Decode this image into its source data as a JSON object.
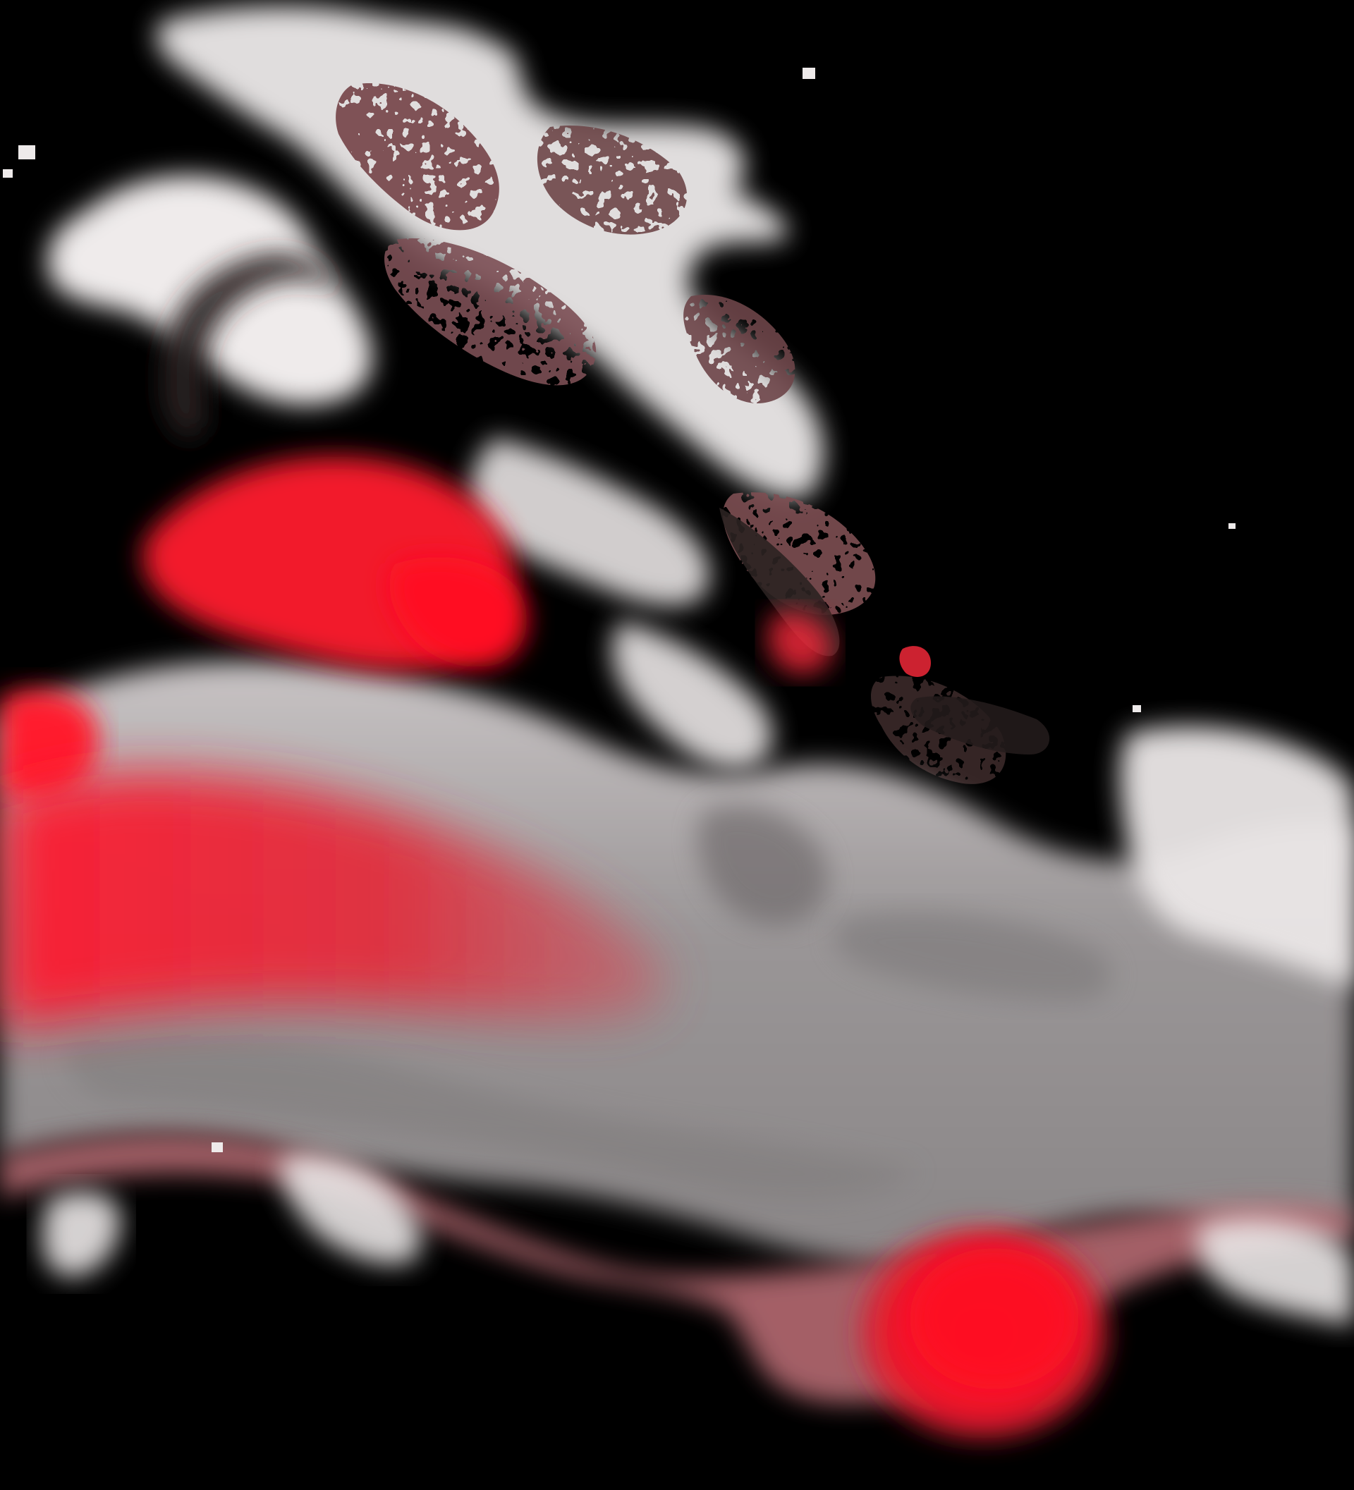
{
  "artwork": {
    "subject": "abstract-ink-smoke",
    "colors": {
      "background": "#000000",
      "smoke_light": "#ece9e9",
      "smoke_mid": "#b9b3b4",
      "smoke_gray": "#8f8c8d",
      "smoke_dark": "#2a2322",
      "ink_red": "#ff1a2d",
      "ink_red_deep": "#e01b2c",
      "dusty_rose": "#b66a72",
      "mauve_speckle": "#7a4b4f"
    }
  }
}
